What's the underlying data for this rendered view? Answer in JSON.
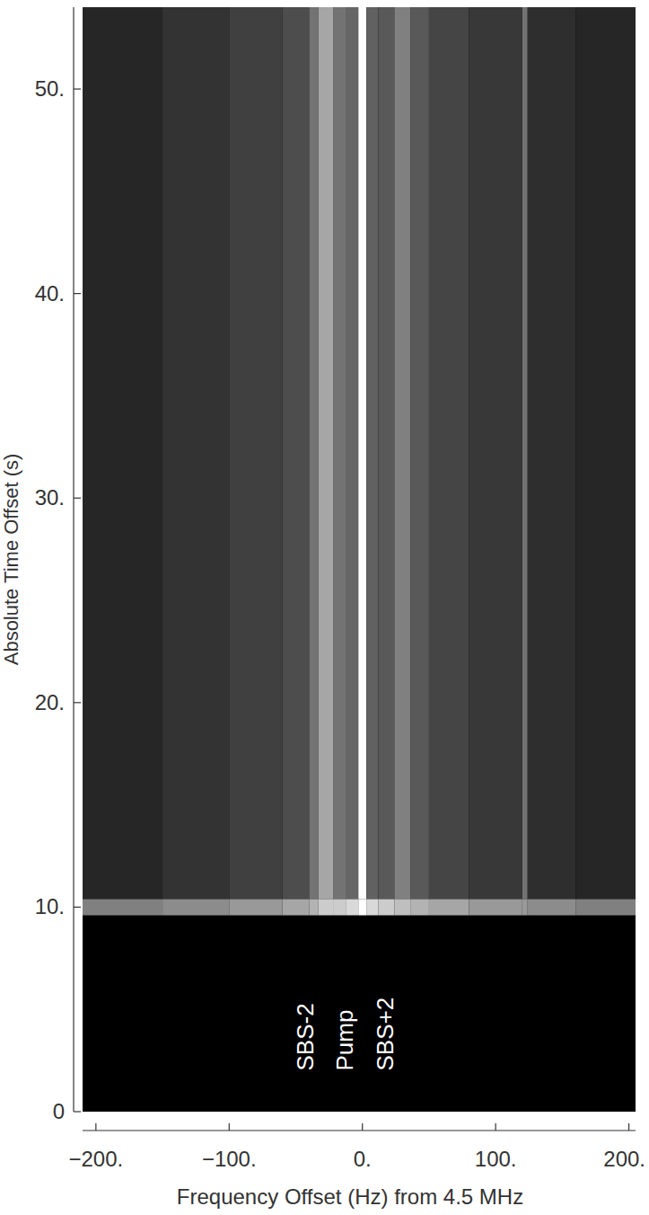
{
  "chart_data": {
    "type": "heatmap",
    "x_label": "Frequency Offset (Hz) from 4.5 MHz",
    "y_label": "Absolute Time Offset (s)",
    "xlim": [
      -210,
      205
    ],
    "ylim": [
      0,
      54
    ],
    "xticks": [
      {
        "value": -200,
        "label": "−200."
      },
      {
        "value": -100,
        "label": "−100."
      },
      {
        "value": 0,
        "label": "0."
      },
      {
        "value": 100,
        "label": "100."
      },
      {
        "value": 200,
        "label": "200."
      }
    ],
    "yticks": [
      0,
      {
        "value": 10,
        "label": "10."
      },
      {
        "value": 20,
        "label": "20."
      },
      {
        "value": 30,
        "label": "30."
      },
      {
        "value": 40,
        "label": "40."
      },
      {
        "value": 50,
        "label": "50."
      }
    ],
    "x_edges": [
      -210,
      -150,
      -100,
      -60,
      -40,
      -33,
      -22,
      -12,
      -3,
      3,
      12,
      24,
      36,
      50,
      80,
      120,
      124,
      160,
      205
    ],
    "y_edges": [
      0,
      9.6,
      10.4,
      54
    ],
    "cells": [
      [
        0,
        0,
        0,
        0,
        0,
        0,
        0,
        0,
        0,
        0,
        0,
        0,
        0,
        0,
        0,
        0,
        0,
        0
      ],
      [
        0.5,
        0.55,
        0.6,
        0.65,
        0.7,
        0.8,
        0.8,
        0.85,
        1.0,
        0.85,
        0.8,
        0.75,
        0.7,
        0.65,
        0.6,
        0.6,
        0.55,
        0.5
      ],
      [
        0.15,
        0.2,
        0.25,
        0.3,
        0.45,
        0.65,
        0.45,
        0.4,
        1.0,
        0.38,
        0.35,
        0.5,
        0.35,
        0.27,
        0.22,
        0.45,
        0.18,
        0.15
      ]
    ],
    "annotations": [
      {
        "text": "SBS-2",
        "x": -43,
        "y": 2
      },
      {
        "text": "Pump",
        "x": -13,
        "y": 2
      },
      {
        "text": "SBS+2",
        "x": 17,
        "y": 2
      }
    ],
    "grid": false
  }
}
